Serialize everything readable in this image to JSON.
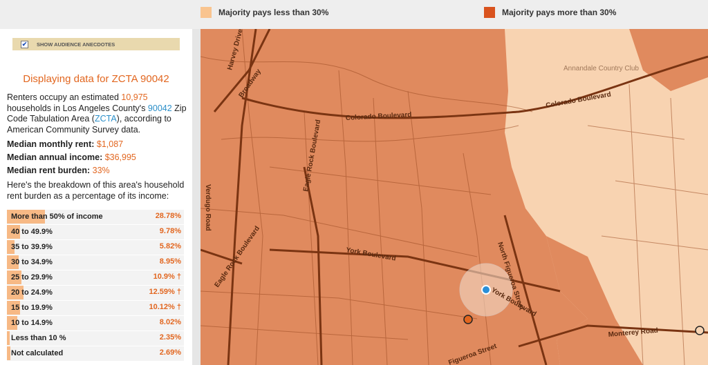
{
  "legend": [
    {
      "label": "Majority pays less than 30%",
      "color": "#f9c48f"
    },
    {
      "label": "Majority pays more than 30%",
      "color": "#d9531e"
    }
  ],
  "sidebar": {
    "checkbox_label": "SHOW AUDIENCE ANECDOTES",
    "heading": "Displaying data for ZCTA 90042",
    "intro": [
      "Renters occupy an estimated ",
      "10,975",
      " households in Los Angeles County's ",
      "90042",
      " Zip Code Tabulation Area (",
      "ZCTA",
      "), according to American Community Survey data."
    ],
    "stats": [
      {
        "label": "Median monthly rent",
        "value": "$1,087"
      },
      {
        "label": "Median annual income",
        "value": "$36,995"
      },
      {
        "label": "Median rent burden",
        "value": "33%"
      }
    ],
    "breakdown_intro": "Here's the breakdown of this area's household rent burden as a percentage of its income:",
    "breakdown": {
      "rows": [
        "More than 50% of income",
        "40 to 49.9%",
        "35 to 39.9%",
        "30 to 34.9%",
        "25 to 29.9%",
        "20 to 24.9%",
        "15 to 19.9%",
        "10 to 14.9%",
        "Less than 10 %",
        "Not calculated"
      ],
      "values": [
        28.78,
        9.78,
        5.82,
        8.95,
        10.9,
        12.59,
        10.12,
        8.02,
        2.35,
        2.69
      ],
      "value_labels": [
        "28.78%",
        "9.78%",
        "5.82%",
        "8.95%",
        "10.9% †",
        "12.59% †",
        "10.12% †",
        "8.02%",
        "2.35%",
        "2.69%"
      ]
    }
  },
  "map": {
    "labels": [
      "Colorado Boulevard",
      "Eagle Rock Boulevard",
      "North Figueroa Street",
      "York Boulevard",
      "York Boulevard",
      "Verdugo Road",
      "Harvey Drive",
      "Broadway",
      "Eagle Rock Boulevard",
      "Monterey Road",
      "Annandale Country Club",
      "Colorado Boulevard",
      "Figueroa Street"
    ]
  }
}
